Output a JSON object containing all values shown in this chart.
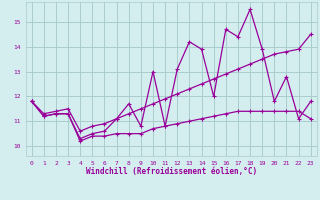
{
  "xlabel": "Windchill (Refroidissement éolien,°C)",
  "bg_color": "#d4eef0",
  "grid_color": "#aacccc",
  "line_color": "#990099",
  "x_ticks": [
    0,
    1,
    2,
    3,
    4,
    5,
    6,
    7,
    8,
    9,
    10,
    11,
    12,
    13,
    14,
    15,
    16,
    17,
    18,
    19,
    20,
    21,
    22,
    23
  ],
  "y_ticks": [
    10,
    11,
    12,
    13,
    14,
    15
  ],
  "ylim": [
    9.6,
    15.8
  ],
  "xlim": [
    -0.5,
    23.5
  ],
  "series1_x": [
    0,
    1,
    2,
    3,
    4,
    5,
    6,
    7,
    8,
    9,
    10,
    11,
    12,
    13,
    14,
    15,
    16,
    17,
    18,
    19,
    20,
    21,
    22,
    23
  ],
  "series1_y": [
    11.8,
    11.2,
    11.3,
    11.3,
    10.3,
    10.5,
    10.6,
    11.1,
    11.7,
    10.8,
    13.0,
    10.8,
    13.1,
    14.2,
    13.9,
    12.0,
    14.7,
    14.4,
    15.5,
    13.9,
    11.8,
    12.8,
    11.1,
    11.8
  ],
  "series2_x": [
    0,
    1,
    2,
    3,
    4,
    5,
    6,
    7,
    8,
    9,
    10,
    11,
    12,
    13,
    14,
    15,
    16,
    17,
    18,
    19,
    20,
    21,
    22,
    23
  ],
  "series2_y": [
    11.8,
    11.2,
    11.3,
    11.3,
    10.2,
    10.4,
    10.4,
    10.5,
    10.5,
    10.5,
    10.7,
    10.8,
    10.9,
    11.0,
    11.1,
    11.2,
    11.3,
    11.4,
    11.4,
    11.4,
    11.4,
    11.4,
    11.4,
    11.1
  ],
  "series3_x": [
    0,
    1,
    2,
    3,
    4,
    5,
    6,
    7,
    8,
    9,
    10,
    11,
    12,
    13,
    14,
    15,
    16,
    17,
    18,
    19,
    20,
    21,
    22,
    23
  ],
  "series3_y": [
    11.8,
    11.3,
    11.4,
    11.5,
    10.6,
    10.8,
    10.9,
    11.1,
    11.3,
    11.5,
    11.7,
    11.9,
    12.1,
    12.3,
    12.5,
    12.7,
    12.9,
    13.1,
    13.3,
    13.5,
    13.7,
    13.8,
    13.9,
    14.5
  ]
}
